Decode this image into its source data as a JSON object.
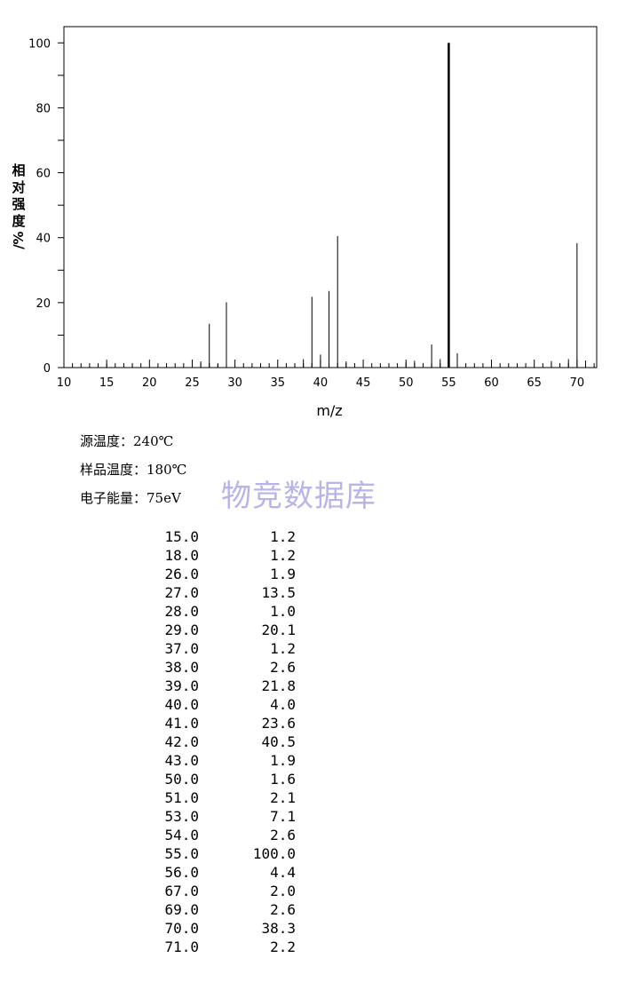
{
  "chart_data": {
    "type": "bar",
    "xlabel": "m/z",
    "ylabel": "相对强度%/",
    "xlim": [
      10,
      72.3
    ],
    "ylim": [
      0,
      105
    ],
    "xticks": [
      10,
      15,
      20,
      25,
      30,
      35,
      40,
      45,
      50,
      55,
      60,
      65,
      70
    ],
    "yticks": [
      0,
      20,
      40,
      60,
      80,
      100
    ],
    "grid": false,
    "peaks": [
      {
        "mz": 15,
        "intensity": 1.2
      },
      {
        "mz": 18,
        "intensity": 1.2
      },
      {
        "mz": 26,
        "intensity": 1.9
      },
      {
        "mz": 27,
        "intensity": 13.5
      },
      {
        "mz": 28,
        "intensity": 1.0
      },
      {
        "mz": 29,
        "intensity": 20.1
      },
      {
        "mz": 37,
        "intensity": 1.2
      },
      {
        "mz": 38,
        "intensity": 2.6
      },
      {
        "mz": 39,
        "intensity": 21.8
      },
      {
        "mz": 40,
        "intensity": 4.0
      },
      {
        "mz": 41,
        "intensity": 23.6
      },
      {
        "mz": 42,
        "intensity": 40.5
      },
      {
        "mz": 43,
        "intensity": 1.9
      },
      {
        "mz": 50,
        "intensity": 1.6
      },
      {
        "mz": 51,
        "intensity": 2.1
      },
      {
        "mz": 53,
        "intensity": 7.1
      },
      {
        "mz": 54,
        "intensity": 2.6
      },
      {
        "mz": 55,
        "intensity": 100.0
      },
      {
        "mz": 56,
        "intensity": 4.4
      },
      {
        "mz": 67,
        "intensity": 2.0
      },
      {
        "mz": 69,
        "intensity": 2.6
      },
      {
        "mz": 70,
        "intensity": 38.3
      },
      {
        "mz": 71,
        "intensity": 2.2
      }
    ]
  },
  "conditions": {
    "source_temp": "源温度：240℃",
    "sample_temp": "样品温度：180℃",
    "electron_energy": "电子能量：75eV"
  },
  "watermark": "物竞数据库",
  "peak_table": [
    {
      "mz": "15.0",
      "intensity": "1.2"
    },
    {
      "mz": "18.0",
      "intensity": "1.2"
    },
    {
      "mz": "26.0",
      "intensity": "1.9"
    },
    {
      "mz": "27.0",
      "intensity": "13.5"
    },
    {
      "mz": "28.0",
      "intensity": "1.0"
    },
    {
      "mz": "29.0",
      "intensity": "20.1"
    },
    {
      "mz": "37.0",
      "intensity": "1.2"
    },
    {
      "mz": "38.0",
      "intensity": "2.6"
    },
    {
      "mz": "39.0",
      "intensity": "21.8"
    },
    {
      "mz": "40.0",
      "intensity": "4.0"
    },
    {
      "mz": "41.0",
      "intensity": "23.6"
    },
    {
      "mz": "42.0",
      "intensity": "40.5"
    },
    {
      "mz": "43.0",
      "intensity": "1.9"
    },
    {
      "mz": "50.0",
      "intensity": "1.6"
    },
    {
      "mz": "51.0",
      "intensity": "2.1"
    },
    {
      "mz": "53.0",
      "intensity": "7.1"
    },
    {
      "mz": "54.0",
      "intensity": "2.6"
    },
    {
      "mz": "55.0",
      "intensity": "100.0"
    },
    {
      "mz": "56.0",
      "intensity": "4.4"
    },
    {
      "mz": "67.0",
      "intensity": "2.0"
    },
    {
      "mz": "69.0",
      "intensity": "2.6"
    },
    {
      "mz": "70.0",
      "intensity": "38.3"
    },
    {
      "mz": "71.0",
      "intensity": "2.2"
    }
  ]
}
